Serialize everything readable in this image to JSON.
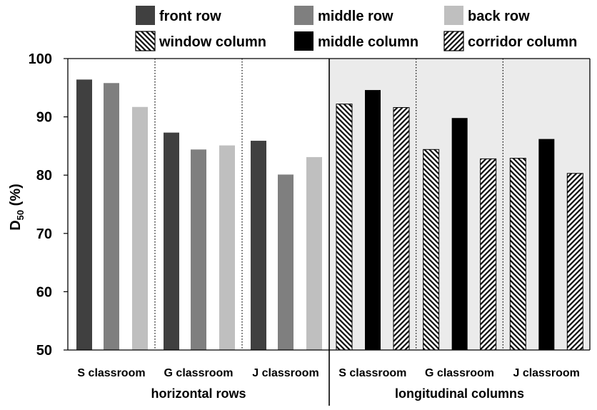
{
  "chart_data": {
    "type": "bar",
    "ylabel_main": "D",
    "ylabel_sub": "50",
    "ylabel_unit": " (%)",
    "ylim": [
      50,
      100
    ],
    "yticks": [
      "50",
      "60",
      "70",
      "80",
      "90",
      "100"
    ],
    "legend": [
      {
        "name": "front row",
        "style": "solid",
        "color": "#404040"
      },
      {
        "name": "middle row",
        "style": "solid",
        "color": "#7f7f7f"
      },
      {
        "name": "back row",
        "style": "solid",
        "color": "#bfbfbf"
      },
      {
        "name": "window column",
        "style": "hatch-back",
        "color": "#000000"
      },
      {
        "name": "middle column",
        "style": "solid",
        "color": "#000000"
      },
      {
        "name": "corridor column",
        "style": "hatch-fwd",
        "color": "#000000"
      }
    ],
    "sections": [
      {
        "label": "horizontal rows",
        "shaded": false,
        "groups": [
          {
            "label": "S classroom",
            "values": [
              96.4,
              95.8,
              91.7
            ]
          },
          {
            "label": "G classroom",
            "values": [
              87.3,
              84.4,
              85.1
            ]
          },
          {
            "label": "J classroom",
            "values": [
              85.9,
              80.1,
              83.1
            ]
          }
        ]
      },
      {
        "label": "longitudinal columns",
        "shaded": true,
        "background": "#ebebeb",
        "groups": [
          {
            "label": "S classroom",
            "values": [
              92.2,
              94.6,
              91.6
            ]
          },
          {
            "label": "G classroom",
            "values": [
              84.4,
              89.8,
              82.8
            ]
          },
          {
            "label": "J classroom",
            "values": [
              82.9,
              86.2,
              80.3
            ]
          }
        ]
      }
    ]
  }
}
